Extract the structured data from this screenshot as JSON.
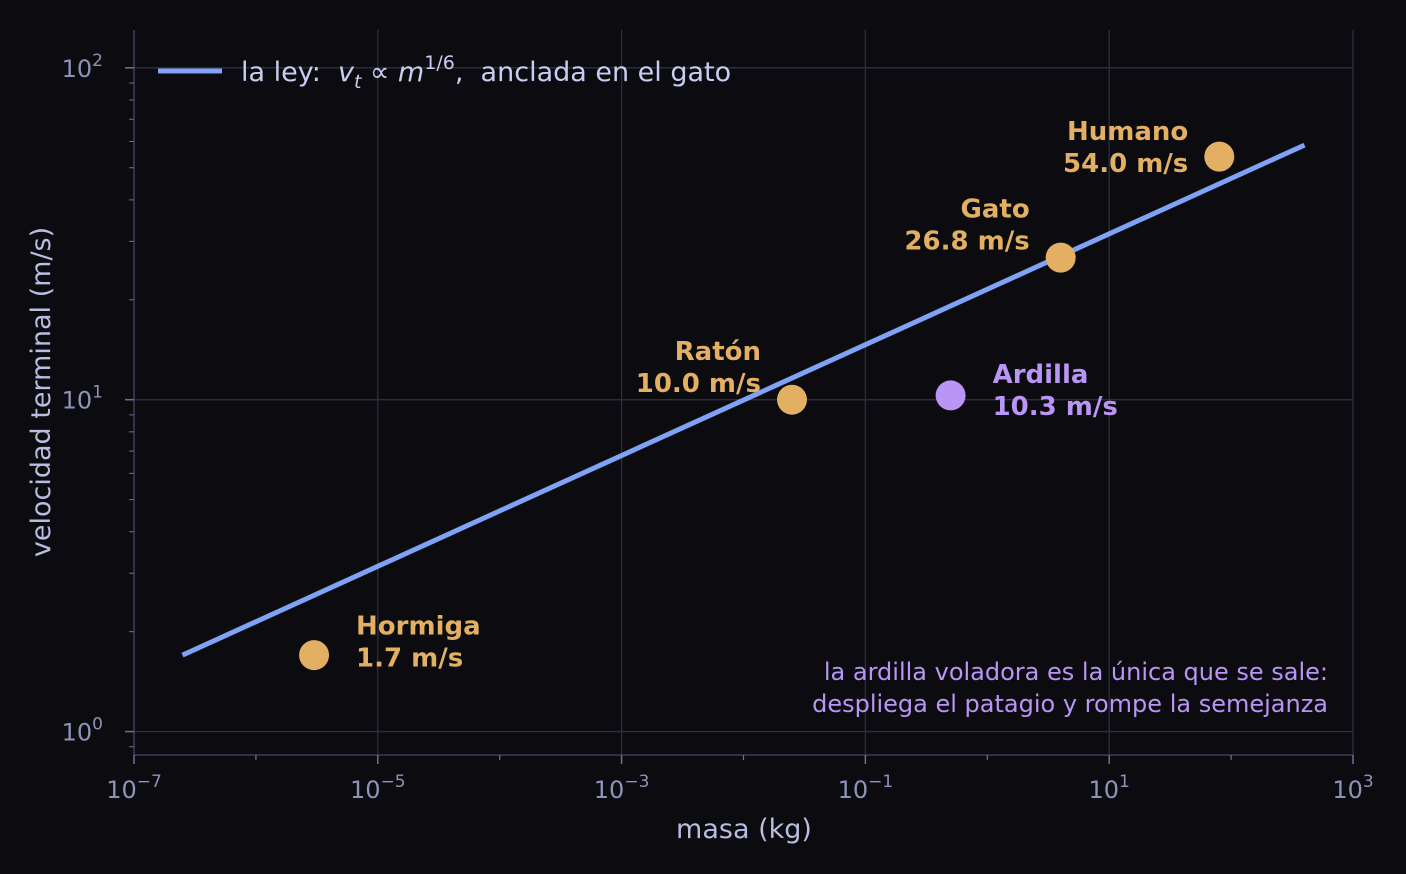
{
  "chart_data": {
    "type": "scatter",
    "xlabel": "masa  (kg)",
    "ylabel": "velocidad terminal  (m/s)",
    "x_scale": "log",
    "y_scale": "log",
    "xlim": [
      1e-07,
      1000
    ],
    "ylim": [
      0.85,
      130
    ],
    "grid": true,
    "x_ticks": [
      {
        "base": "10",
        "exp": "−7",
        "value": 1e-07
      },
      {
        "base": "10",
        "exp": "−5",
        "value": 1e-05
      },
      {
        "base": "10",
        "exp": "−3",
        "value": 0.001
      },
      {
        "base": "10",
        "exp": "−1",
        "value": 0.1
      },
      {
        "base": "10",
        "exp": "1",
        "value": 10
      },
      {
        "base": "10",
        "exp": "3",
        "value": 1000
      }
    ],
    "y_ticks": [
      {
        "base": "10",
        "exp": "0",
        "value": 1
      },
      {
        "base": "10",
        "exp": "1",
        "value": 10
      },
      {
        "base": "10",
        "exp": "2",
        "value": 100
      }
    ],
    "legend": {
      "position": "top-left",
      "prefix": "la ley:  ",
      "formula_v": "v",
      "formula_sub": "t",
      "formula_prop": " ∝ ",
      "formula_m": "m",
      "formula_exp": "1/6",
      "suffix": ",  anclada en el gato"
    },
    "line": {
      "name": "la ley: v_t ∝ m^(1/6), anclada en el gato",
      "color": "#7fa2f5",
      "x": [
        2.5e-07,
        400
      ],
      "y": [
        1.7,
        58.5
      ]
    },
    "points": [
      {
        "name": "Hormiga",
        "value_label": "1.7 m/s",
        "x": 3e-06,
        "y": 1.7,
        "color": "#e3af62",
        "label_side": "right",
        "dy": -0.8
      },
      {
        "name": "Ratón",
        "value_label": "10.0 m/s",
        "x": 0.025,
        "y": 10.0,
        "color": "#e3af62",
        "label_side": "left",
        "dy": -2.3
      },
      {
        "name": "Ardilla",
        "value_label": "10.3 m/s",
        "x": 0.5,
        "y": 10.3,
        "color": "#b995f5",
        "label_side": "right",
        "dy": -0.2
      },
      {
        "name": "Gato",
        "value_label": "26.8 m/s",
        "x": 4,
        "y": 26.8,
        "color": "#e3af62",
        "label_side": "left",
        "dy": -2.3
      },
      {
        "name": "Humano",
        "value_label": "54.0 m/s",
        "x": 80,
        "y": 54.0,
        "color": "#e3af62",
        "label_side": "left",
        "dy": -0.5
      }
    ],
    "annotation": [
      "la ardilla voladora es la única que se sale:",
      "despliega el patagio y rompe la semejanza"
    ],
    "annotation_color": "#b995f5"
  }
}
